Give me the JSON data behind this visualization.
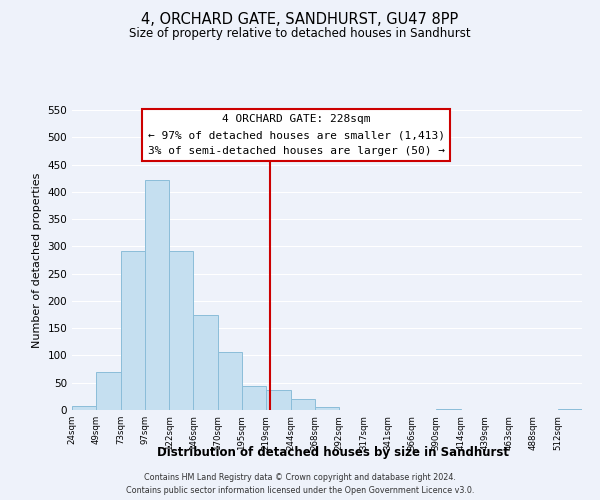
{
  "title": "4, ORCHARD GATE, SANDHURST, GU47 8PP",
  "subtitle": "Size of property relative to detached houses in Sandhurst",
  "xlabel": "Distribution of detached houses by size in Sandhurst",
  "ylabel": "Number of detached properties",
  "bar_color": "#c5dff0",
  "bar_edge_color": "#8bbdd9",
  "background_color": "#eef2fa",
  "grid_color": "#ffffff",
  "tick_labels": [
    "24sqm",
    "49sqm",
    "73sqm",
    "97sqm",
    "122sqm",
    "146sqm",
    "170sqm",
    "195sqm",
    "219sqm",
    "244sqm",
    "268sqm",
    "292sqm",
    "317sqm",
    "341sqm",
    "366sqm",
    "390sqm",
    "414sqm",
    "439sqm",
    "463sqm",
    "488sqm",
    "512sqm"
  ],
  "bar_heights": [
    8,
    70,
    291,
    422,
    291,
    174,
    106,
    44,
    37,
    20,
    5,
    0,
    0,
    0,
    0,
    2,
    0,
    0,
    0,
    0,
    2
  ],
  "ylim": [
    0,
    550
  ],
  "yticks": [
    0,
    50,
    100,
    150,
    200,
    250,
    300,
    350,
    400,
    450,
    500,
    550
  ],
  "property_line_x": 8.16,
  "property_line_color": "#cc0000",
  "annotation_title": "4 ORCHARD GATE: 228sqm",
  "annotation_line1": "← 97% of detached houses are smaller (1,413)",
  "annotation_line2": "3% of semi-detached houses are larger (50) →",
  "footer_line1": "Contains HM Land Registry data © Crown copyright and database right 2024.",
  "footer_line2": "Contains public sector information licensed under the Open Government Licence v3.0."
}
